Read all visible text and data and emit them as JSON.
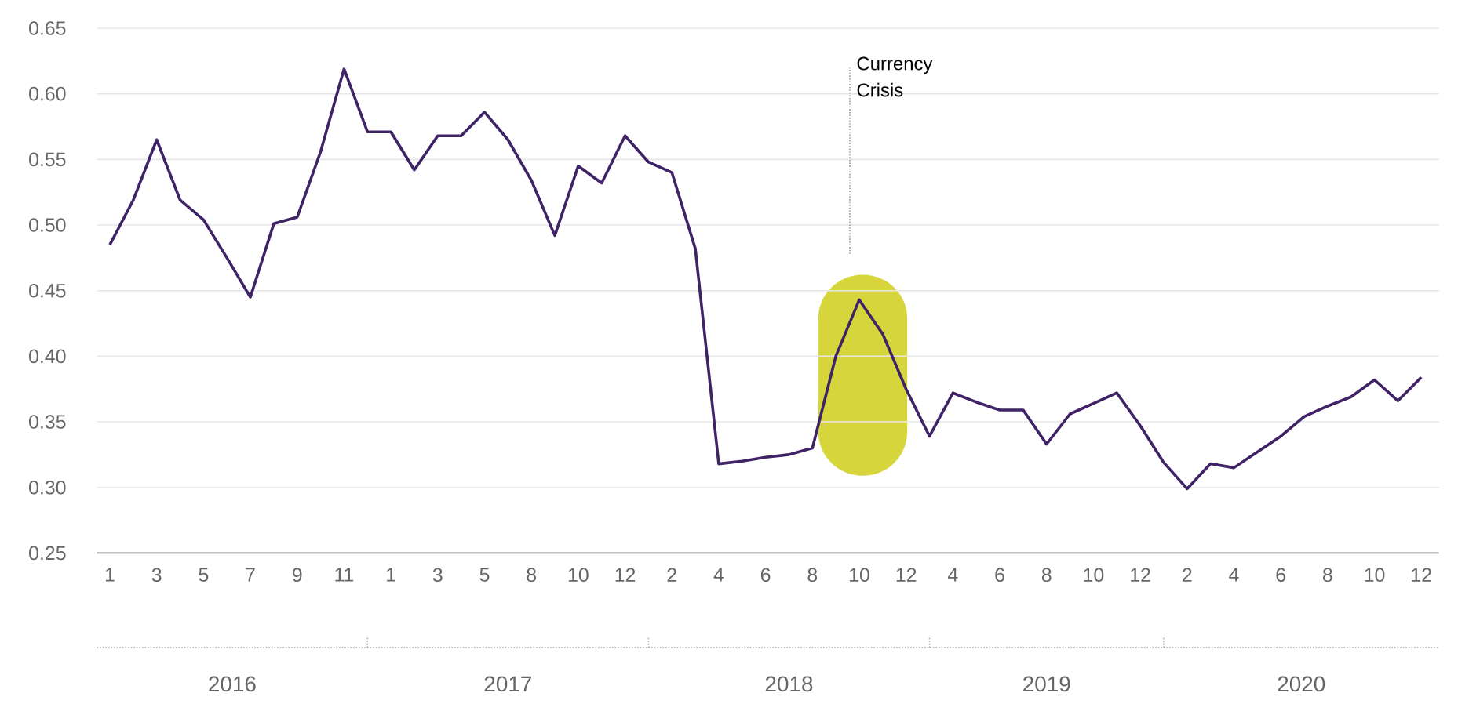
{
  "chart_data": {
    "type": "line",
    "categories": [
      "1",
      null,
      "3",
      null,
      "5",
      null,
      "7",
      null,
      "9",
      null,
      "11",
      null,
      "1",
      null,
      "3",
      null,
      "5",
      null,
      "8",
      null,
      "10",
      null,
      "12",
      null,
      "2",
      null,
      "4",
      null,
      "6",
      null,
      "8",
      null,
      "10",
      null,
      "12",
      null,
      "4",
      null,
      "6",
      null,
      "8",
      null,
      "10",
      null,
      "12",
      null,
      "2",
      null,
      "4",
      null,
      "6",
      null,
      "8",
      null,
      "10",
      null,
      "12"
    ],
    "series": [
      {
        "color": "#3f2366",
        "values": [
          0.485,
          0.519,
          0.565,
          0.519,
          0.504,
          0.475,
          0.445,
          0.501,
          0.506,
          0.556,
          0.619,
          0.571,
          0.571,
          0.542,
          0.568,
          0.568,
          0.586,
          0.565,
          0.534,
          0.492,
          0.545,
          0.532,
          0.568,
          0.548,
          0.54,
          0.482,
          0.318,
          0.32,
          0.323,
          0.325,
          0.33,
          0.4,
          0.443,
          0.417,
          0.375,
          0.339,
          0.372,
          0.365,
          0.359,
          0.359,
          0.333,
          0.356,
          0.364,
          0.372,
          0.347,
          0.319,
          0.299,
          0.318,
          0.315,
          0.327,
          0.339,
          0.354,
          0.362,
          0.369,
          0.382,
          0.366,
          0.384
        ]
      }
    ],
    "ylim": [
      0.25,
      0.65
    ],
    "yticks": [
      0.25,
      {
        "value": 0.3,
        "label": "0.30"
      },
      0.35,
      {
        "value": 0.4,
        "label": "0.40"
      },
      0.45,
      {
        "value": 0.5,
        "label": "0.50"
      },
      0.55,
      {
        "value": 0.6,
        "label": "0.60"
      },
      0.65
    ],
    "grid": "y",
    "marker": "none",
    "line_style": "solid",
    "annotations": [
      "Currency Crisis",
      "2016",
      "2017",
      "2018",
      "2019",
      "2020"
    ]
  }
}
